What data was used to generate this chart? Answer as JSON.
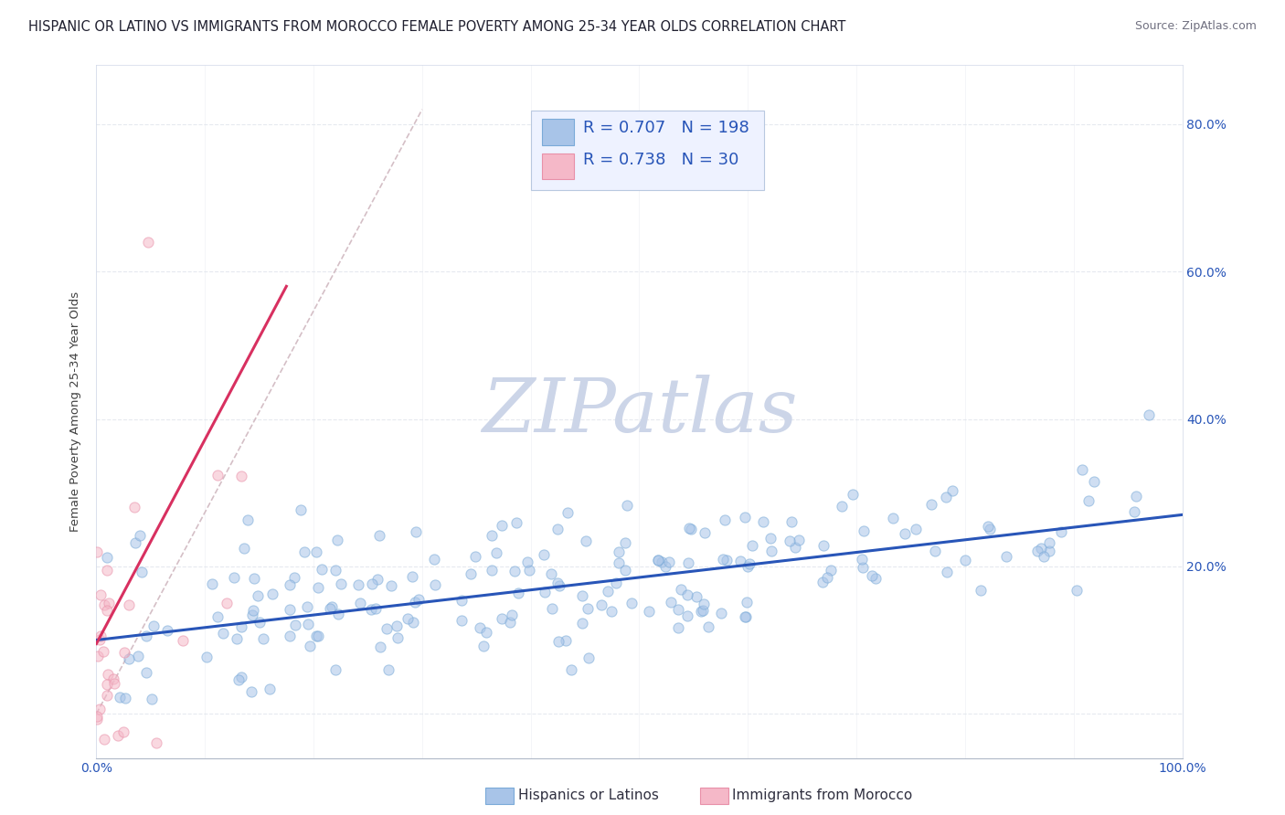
{
  "title": "HISPANIC OR LATINO VS IMMIGRANTS FROM MOROCCO FEMALE POVERTY AMONG 25-34 YEAR OLDS CORRELATION CHART",
  "source": "Source: ZipAtlas.com",
  "ylabel": "Female Poverty Among 25-34 Year Olds",
  "xlim": [
    0.0,
    1.0
  ],
  "ylim": [
    -0.06,
    0.88
  ],
  "xticks": [
    0.0,
    0.1,
    0.2,
    0.3,
    0.4,
    0.5,
    0.6,
    0.7,
    0.8,
    0.9,
    1.0
  ],
  "xticklabels": [
    "0.0%",
    "",
    "",
    "",
    "",
    "",
    "",
    "",
    "",
    "",
    "100.0%"
  ],
  "ytick_positions": [
    0.0,
    0.2,
    0.4,
    0.6,
    0.8
  ],
  "yticklabels_right": [
    "20.0%",
    "40.0%",
    "60.0%",
    "80.0%"
  ],
  "ytick_positions_right": [
    0.2,
    0.4,
    0.6,
    0.8
  ],
  "blue_scatter_color": "#a8c4e8",
  "blue_scatter_edge": "#7aaad8",
  "pink_scatter_color": "#f5b8c8",
  "pink_scatter_edge": "#e890a8",
  "blue_line_color": "#2855b8",
  "pink_line_color": "#d83060",
  "dashed_line_color": "#d0b8c0",
  "watermark_text": "ZIPatlas",
  "watermark_color": "#ccd5e8",
  "legend_box_facecolor": "#eef2ff",
  "legend_box_edgecolor": "#b8c8e0",
  "R_blue": 0.707,
  "N_blue": 198,
  "R_pink": 0.738,
  "N_pink": 30,
  "title_fontsize": 10.5,
  "axis_label_fontsize": 9.5,
  "tick_fontsize": 10,
  "legend_fontsize": 13,
  "blue_seed": 42,
  "pink_seed": 123,
  "grid_color": "#e0e4ec",
  "grid_alpha": 0.8,
  "background_color": "#ffffff",
  "scatter_alpha": 0.55,
  "scatter_size": 65,
  "blue_line_x": [
    0.0,
    1.0
  ],
  "blue_line_y": [
    0.1,
    0.27
  ],
  "pink_line_x": [
    0.0,
    0.175
  ],
  "pink_line_y": [
    0.095,
    0.58
  ],
  "dash_line_x": [
    0.0,
    0.3
  ],
  "dash_line_y": [
    0.0,
    0.82
  ]
}
